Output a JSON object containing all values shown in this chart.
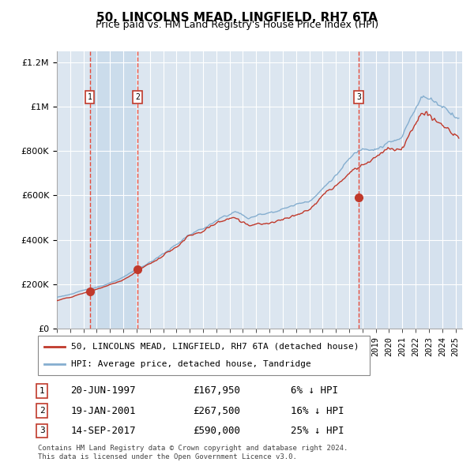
{
  "title": "50, LINCOLNS MEAD, LINGFIELD, RH7 6TA",
  "subtitle": "Price paid vs. HM Land Registry's House Price Index (HPI)",
  "legend_label_red": "50, LINCOLNS MEAD, LINGFIELD, RH7 6TA (detached house)",
  "legend_label_blue": "HPI: Average price, detached house, Tandridge",
  "transactions": [
    {
      "num": 1,
      "date": "20-JUN-1997",
      "price": 167950,
      "pct": "6%",
      "direction": "↓"
    },
    {
      "num": 2,
      "date": "19-JAN-2001",
      "price": 267500,
      "pct": "16%",
      "direction": "↓"
    },
    {
      "num": 3,
      "date": "14-SEP-2017",
      "price": 590000,
      "pct": "25%",
      "direction": "↓"
    }
  ],
  "transaction_dates_decimal": [
    1997.47,
    2001.05,
    2017.71
  ],
  "transaction_prices": [
    167950,
    267500,
    590000
  ],
  "footnote": "Contains HM Land Registry data © Crown copyright and database right 2024.\nThis data is licensed under the Open Government Licence v3.0.",
  "ylim": [
    0,
    1250000
  ],
  "xlim_start": 1995.0,
  "xlim_end": 2025.5,
  "background_color": "#ffffff",
  "plot_bg_color": "#dce6f0",
  "grid_color": "#ffffff",
  "red_color": "#c0392b",
  "blue_color": "#85aecf",
  "dashed_vline_color": "#e74c3c",
  "highlight_band_color": "#c5d8ea",
  "shade_right_color": "#c8d8e8"
}
